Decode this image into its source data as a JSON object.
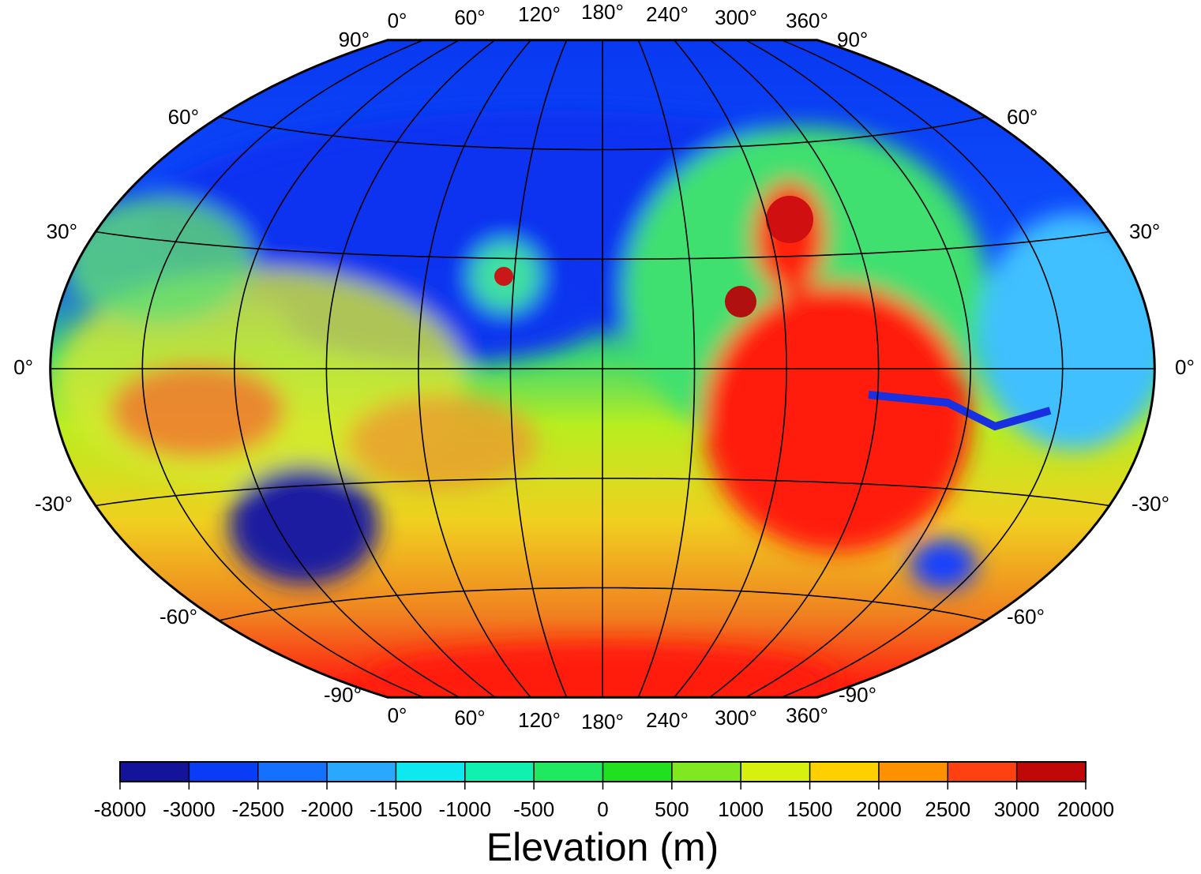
{
  "map": {
    "lon_labels_top": [
      "0°",
      "60°",
      "120°",
      "180°",
      "240°",
      "300°",
      "360°"
    ],
    "lon_labels_bottom": [
      "0°",
      "60°",
      "120°",
      "180°",
      "240°",
      "300°",
      "360°"
    ],
    "lat_labels_left": [
      "90°",
      "60°",
      "30°",
      "0°",
      "-30°",
      "-60°",
      "-90°"
    ],
    "lat_labels_right": [
      "90°",
      "60°",
      "30°",
      "0°",
      "-30°",
      "-60°",
      "-90°"
    ]
  },
  "colorbar": {
    "ticks": [
      -8000,
      -3000,
      -2500,
      -2000,
      -1500,
      -1000,
      -500,
      0,
      500,
      1000,
      1500,
      2000,
      2500,
      3000,
      20000
    ],
    "colors": [
      "#14149a",
      "#0a3cf5",
      "#1470ff",
      "#2aa8ff",
      "#10e8f0",
      "#10f0b0",
      "#20e860",
      "#20e020",
      "#80e820",
      "#d8f010",
      "#ffd000",
      "#ff9000",
      "#ff4010",
      "#c00808"
    ],
    "label": "Elevation (m)"
  }
}
